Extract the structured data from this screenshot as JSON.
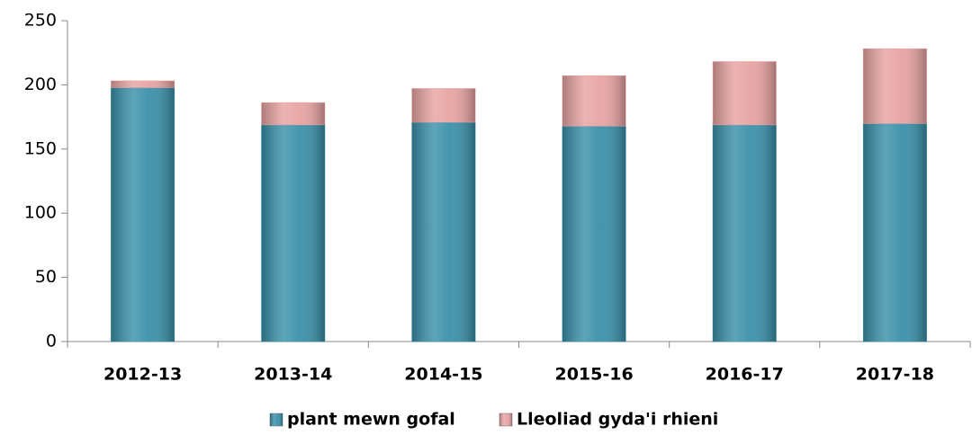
{
  "chart_data": {
    "type": "bar",
    "stacked": true,
    "categories": [
      "2012-13",
      "2013-14",
      "2014-15",
      "2015-16",
      "2016-17",
      "2017-18"
    ],
    "series": [
      {
        "name": "plant mewn gofal",
        "color": "#3a90a9",
        "values": [
          198,
          169,
          171,
          168,
          169,
          170
        ]
      },
      {
        "name": "Lleoliad gyda'i rhieni",
        "color": "#e8a3a3",
        "values": [
          5,
          17,
          26,
          39,
          49,
          58
        ]
      }
    ],
    "ylim": [
      0,
      250
    ],
    "yticks": [
      0,
      50,
      100,
      150,
      200,
      250
    ],
    "grid": false,
    "legend": "bottom"
  }
}
